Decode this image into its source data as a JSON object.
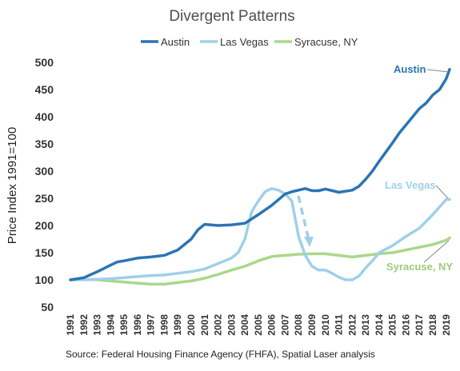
{
  "colors": {
    "austin": "#2a74b4",
    "las_vegas": "#9fd0e8",
    "syracuse": "#a9d88a",
    "text": "#333333",
    "title": "#505050",
    "austin_label": "#2a74b4",
    "las_vegas_label": "#9fd0e8",
    "syracuse_label": "#9ccc7c",
    "arrow": "#9fd0e8",
    "leader": "#888888"
  },
  "chart_data": {
    "type": "line",
    "title": "Divergent Patterns",
    "ylabel": "Price Index 1991=100",
    "xlabel": "",
    "ylim": [
      50,
      500
    ],
    "xlim": [
      1991,
      2019.25
    ],
    "grid": false,
    "legend_position": "top",
    "yticks": [
      "50",
      "100",
      "150",
      "200",
      "250",
      "300",
      "350",
      "400",
      "450",
      "500"
    ],
    "xticks": [
      "1991",
      "1992",
      "1993",
      "1994",
      "1995",
      "1996",
      "1997",
      "1998",
      "1999",
      "2000",
      "2001",
      "2002",
      "2003",
      "2004",
      "2005",
      "2006",
      "2007",
      "2008",
      "2009",
      "2010",
      "2011",
      "2012",
      "2013",
      "2014",
      "2015",
      "2016",
      "2017",
      "2018",
      "2019"
    ],
    "source": "Source: Federal Housing Finance Agency (FHFA), Spatial Laser analysis",
    "series": [
      {
        "name": "Austin",
        "label": "Austin",
        "x": [
          1991,
          1992,
          1993,
          1994,
          1994.5,
          1995,
          1996,
          1997,
          1998,
          1999,
          2000,
          2000.5,
          2001,
          2002,
          2003,
          2004,
          2005,
          2006,
          2007,
          2007.5,
          2008,
          2008.5,
          2009,
          2009.5,
          2010,
          2011,
          2012,
          2012.5,
          2013,
          2013.5,
          2014,
          2014.5,
          2015,
          2015.5,
          2016,
          2016.5,
          2017,
          2017.5,
          2018,
          2018.5,
          2019,
          2019.25
        ],
        "values": [
          100,
          104,
          115,
          127,
          133,
          135,
          140,
          142,
          145,
          155,
          175,
          192,
          202,
          200,
          201,
          204,
          220,
          237,
          258,
          262,
          265,
          268,
          264,
          264,
          267,
          261,
          265,
          272,
          285,
          300,
          318,
          335,
          352,
          370,
          385,
          400,
          415,
          425,
          440,
          450,
          470,
          487
        ]
      },
      {
        "name": "Las Vegas",
        "label": "Las Vegas",
        "x": [
          1991,
          1992,
          1993,
          1994,
          1995,
          1996,
          1997,
          1998,
          1999,
          2000,
          2001,
          2002,
          2003,
          2003.5,
          2004,
          2004.5,
          2005,
          2005.5,
          2006,
          2006.5,
          2007,
          2007.5,
          2008,
          2008.5,
          2009,
          2009.5,
          2010,
          2010.5,
          2011,
          2011.5,
          2012,
          2012.5,
          2013,
          2013.5,
          2014,
          2015,
          2016,
          2017,
          2018,
          2019,
          2019.25
        ],
        "values": [
          100,
          100,
          101,
          102,
          104,
          106,
          108,
          109,
          112,
          115,
          120,
          130,
          140,
          150,
          175,
          225,
          245,
          262,
          268,
          265,
          258,
          245,
          180,
          145,
          125,
          118,
          118,
          112,
          105,
          100,
          100,
          107,
          122,
          135,
          150,
          163,
          180,
          195,
          220,
          248,
          248
        ]
      },
      {
        "name": "Syracuse, NY",
        "label": "Syracuse, NY",
        "x": [
          1991,
          1992,
          1993,
          1994,
          1995,
          1996,
          1997,
          1998,
          1999,
          2000,
          2001,
          2002,
          2003,
          2004,
          2005,
          2006,
          2007,
          2008,
          2009,
          2010,
          2011,
          2012,
          2013,
          2014,
          2015,
          2016,
          2017,
          2018,
          2019,
          2019.25
        ],
        "values": [
          100,
          101,
          100,
          98,
          96,
          94,
          92,
          92,
          95,
          98,
          103,
          110,
          118,
          125,
          135,
          143,
          145,
          147,
          148,
          148,
          145,
          142,
          145,
          148,
          150,
          155,
          160,
          165,
          173,
          177
        ]
      }
    ]
  }
}
